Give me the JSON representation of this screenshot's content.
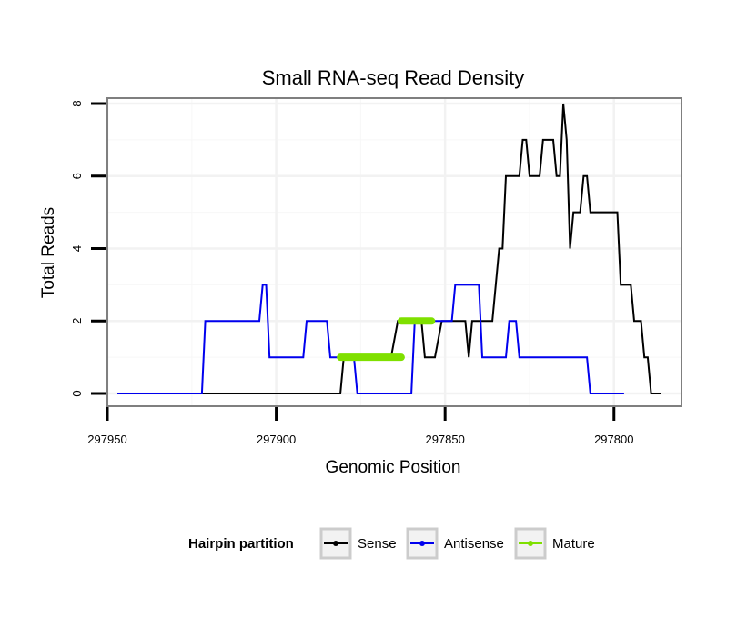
{
  "chart_data": {
    "type": "line",
    "title": "Small RNA-seq Read Density",
    "xlabel": "Genomic Position",
    "ylabel": "Total Reads",
    "xlim": [
      297950,
      297780
    ],
    "x_reversed": true,
    "ylim": [
      -0.35,
      8.15
    ],
    "x_ticks": [
      297950,
      297900,
      297850,
      297800
    ],
    "x_tick_labels": [
      "297950",
      "297900",
      "297850",
      "297800"
    ],
    "y_ticks": [
      0,
      2,
      4,
      6,
      8
    ],
    "y_tick_labels": [
      "0",
      "2",
      "4",
      "6",
      "8"
    ],
    "grid": true,
    "legend": {
      "title": "Hairpin partition",
      "placement": "bottom",
      "entries": [
        "Sense",
        "Antisense",
        "Mature"
      ]
    },
    "series": [
      {
        "name": "Sense",
        "color": "#000000",
        "points": [
          [
            297947,
            0
          ],
          [
            297881,
            0
          ],
          [
            297880,
            1
          ],
          [
            297866,
            1
          ],
          [
            297864,
            2
          ],
          [
            297857,
            2
          ],
          [
            297856,
            1
          ],
          [
            297853,
            1
          ],
          [
            297851,
            2
          ],
          [
            297844,
            2
          ],
          [
            297843,
            1
          ],
          [
            297842,
            2
          ],
          [
            297836,
            2
          ],
          [
            297834,
            4
          ],
          [
            297833,
            4
          ],
          [
            297832,
            6
          ],
          [
            297828,
            6
          ],
          [
            297827,
            7
          ],
          [
            297826,
            7
          ],
          [
            297825,
            6
          ],
          [
            297822,
            6
          ],
          [
            297821,
            7
          ],
          [
            297818,
            7
          ],
          [
            297817,
            6
          ],
          [
            297816,
            6
          ],
          [
            297815,
            8
          ],
          [
            297814,
            7
          ],
          [
            297813,
            4
          ],
          [
            297812,
            5
          ],
          [
            297810,
            5
          ],
          [
            297809,
            6
          ],
          [
            297808,
            6
          ],
          [
            297807,
            5
          ],
          [
            297799,
            5
          ],
          [
            297798,
            3
          ],
          [
            297795,
            3
          ],
          [
            297794,
            2
          ],
          [
            297792,
            2
          ],
          [
            297791,
            1
          ],
          [
            297790,
            1
          ],
          [
            297789,
            0
          ],
          [
            297786,
            0
          ]
        ]
      },
      {
        "name": "Antisense",
        "color": "#0000ee",
        "points": [
          [
            297947,
            0
          ],
          [
            297922,
            0
          ],
          [
            297921,
            2
          ],
          [
            297905,
            2
          ],
          [
            297904,
            3
          ],
          [
            297903,
            3
          ],
          [
            297902,
            1
          ],
          [
            297892,
            1
          ],
          [
            297891,
            2
          ],
          [
            297885,
            2
          ],
          [
            297884,
            1
          ],
          [
            297877,
            1
          ],
          [
            297876,
            0
          ],
          [
            297860,
            0
          ],
          [
            297859,
            2
          ],
          [
            297854,
            2
          ],
          [
            297853,
            2
          ],
          [
            297848,
            2
          ],
          [
            297847,
            3
          ],
          [
            297840,
            3
          ],
          [
            297839,
            1
          ],
          [
            297832,
            1
          ],
          [
            297831,
            2
          ],
          [
            297829,
            2
          ],
          [
            297828,
            1
          ],
          [
            297808,
            1
          ],
          [
            297807,
            0
          ],
          [
            297798,
            0
          ],
          [
            297797,
            0
          ]
        ]
      },
      {
        "name": "Mature",
        "color": "#7fe000",
        "segments": [
          [
            [
              297881,
              1
            ],
            [
              297863,
              1
            ]
          ],
          [
            [
              297863,
              2
            ],
            [
              297854,
              2
            ]
          ]
        ]
      }
    ]
  }
}
